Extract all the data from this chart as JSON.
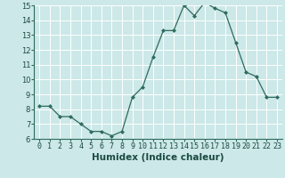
{
  "x": [
    0,
    1,
    2,
    3,
    4,
    5,
    6,
    7,
    8,
    9,
    10,
    11,
    12,
    13,
    14,
    15,
    16,
    17,
    18,
    19,
    20,
    21,
    22,
    23
  ],
  "y": [
    8.2,
    8.2,
    7.5,
    7.5,
    7.0,
    6.5,
    6.5,
    6.2,
    6.5,
    8.8,
    9.5,
    11.5,
    13.3,
    13.3,
    15.0,
    14.3,
    15.2,
    14.8,
    14.5,
    12.5,
    10.5,
    10.2,
    8.8,
    8.8
  ],
  "xlabel": "Humidex (Indice chaleur)",
  "ylim": [
    6,
    15
  ],
  "yticks": [
    6,
    7,
    8,
    9,
    10,
    11,
    12,
    13,
    14,
    15
  ],
  "xticks": [
    0,
    1,
    2,
    3,
    4,
    5,
    6,
    7,
    8,
    9,
    10,
    11,
    12,
    13,
    14,
    15,
    16,
    17,
    18,
    19,
    20,
    21,
    22,
    23
  ],
  "line_color": "#2e6b5e",
  "marker_color": "#2e6b5e",
  "bg_color": "#cce8e8",
  "grid_color": "#b0d8d8",
  "xlabel_fontsize": 7.5,
  "tick_fontsize": 6.0
}
